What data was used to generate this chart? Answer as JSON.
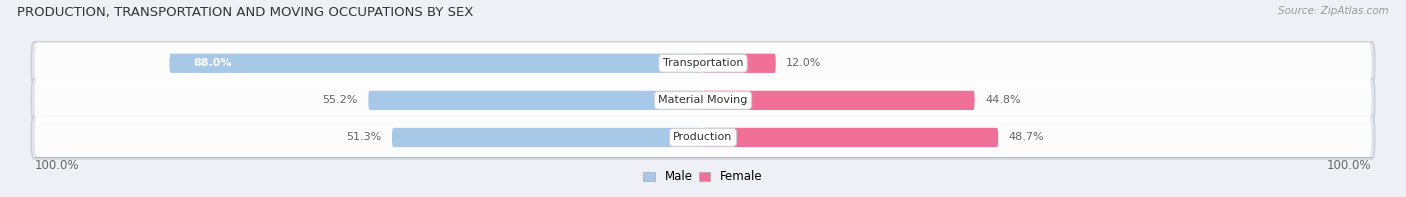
{
  "title": "PRODUCTION, TRANSPORTATION AND MOVING OCCUPATIONS BY SEX",
  "source": "Source: ZipAtlas.com",
  "categories": [
    "Transportation",
    "Material Moving",
    "Production"
  ],
  "male_values": [
    88.0,
    55.2,
    51.3
  ],
  "female_values": [
    12.0,
    44.8,
    48.7
  ],
  "male_color": "#a8c8e8",
  "female_color": "#f07098",
  "male_label": "Male",
  "female_label": "Female",
  "axis_label_left": "100.0%",
  "axis_label_right": "100.0%",
  "title_fontsize": 9.5,
  "source_fontsize": 7.5,
  "legend_fontsize": 8.5,
  "cat_fontsize": 8.0,
  "value_fontsize": 8.0,
  "background_color": "#eef0f5",
  "row_bg_color": "#e2e4ec",
  "row_bg_inner": "#ffffff"
}
